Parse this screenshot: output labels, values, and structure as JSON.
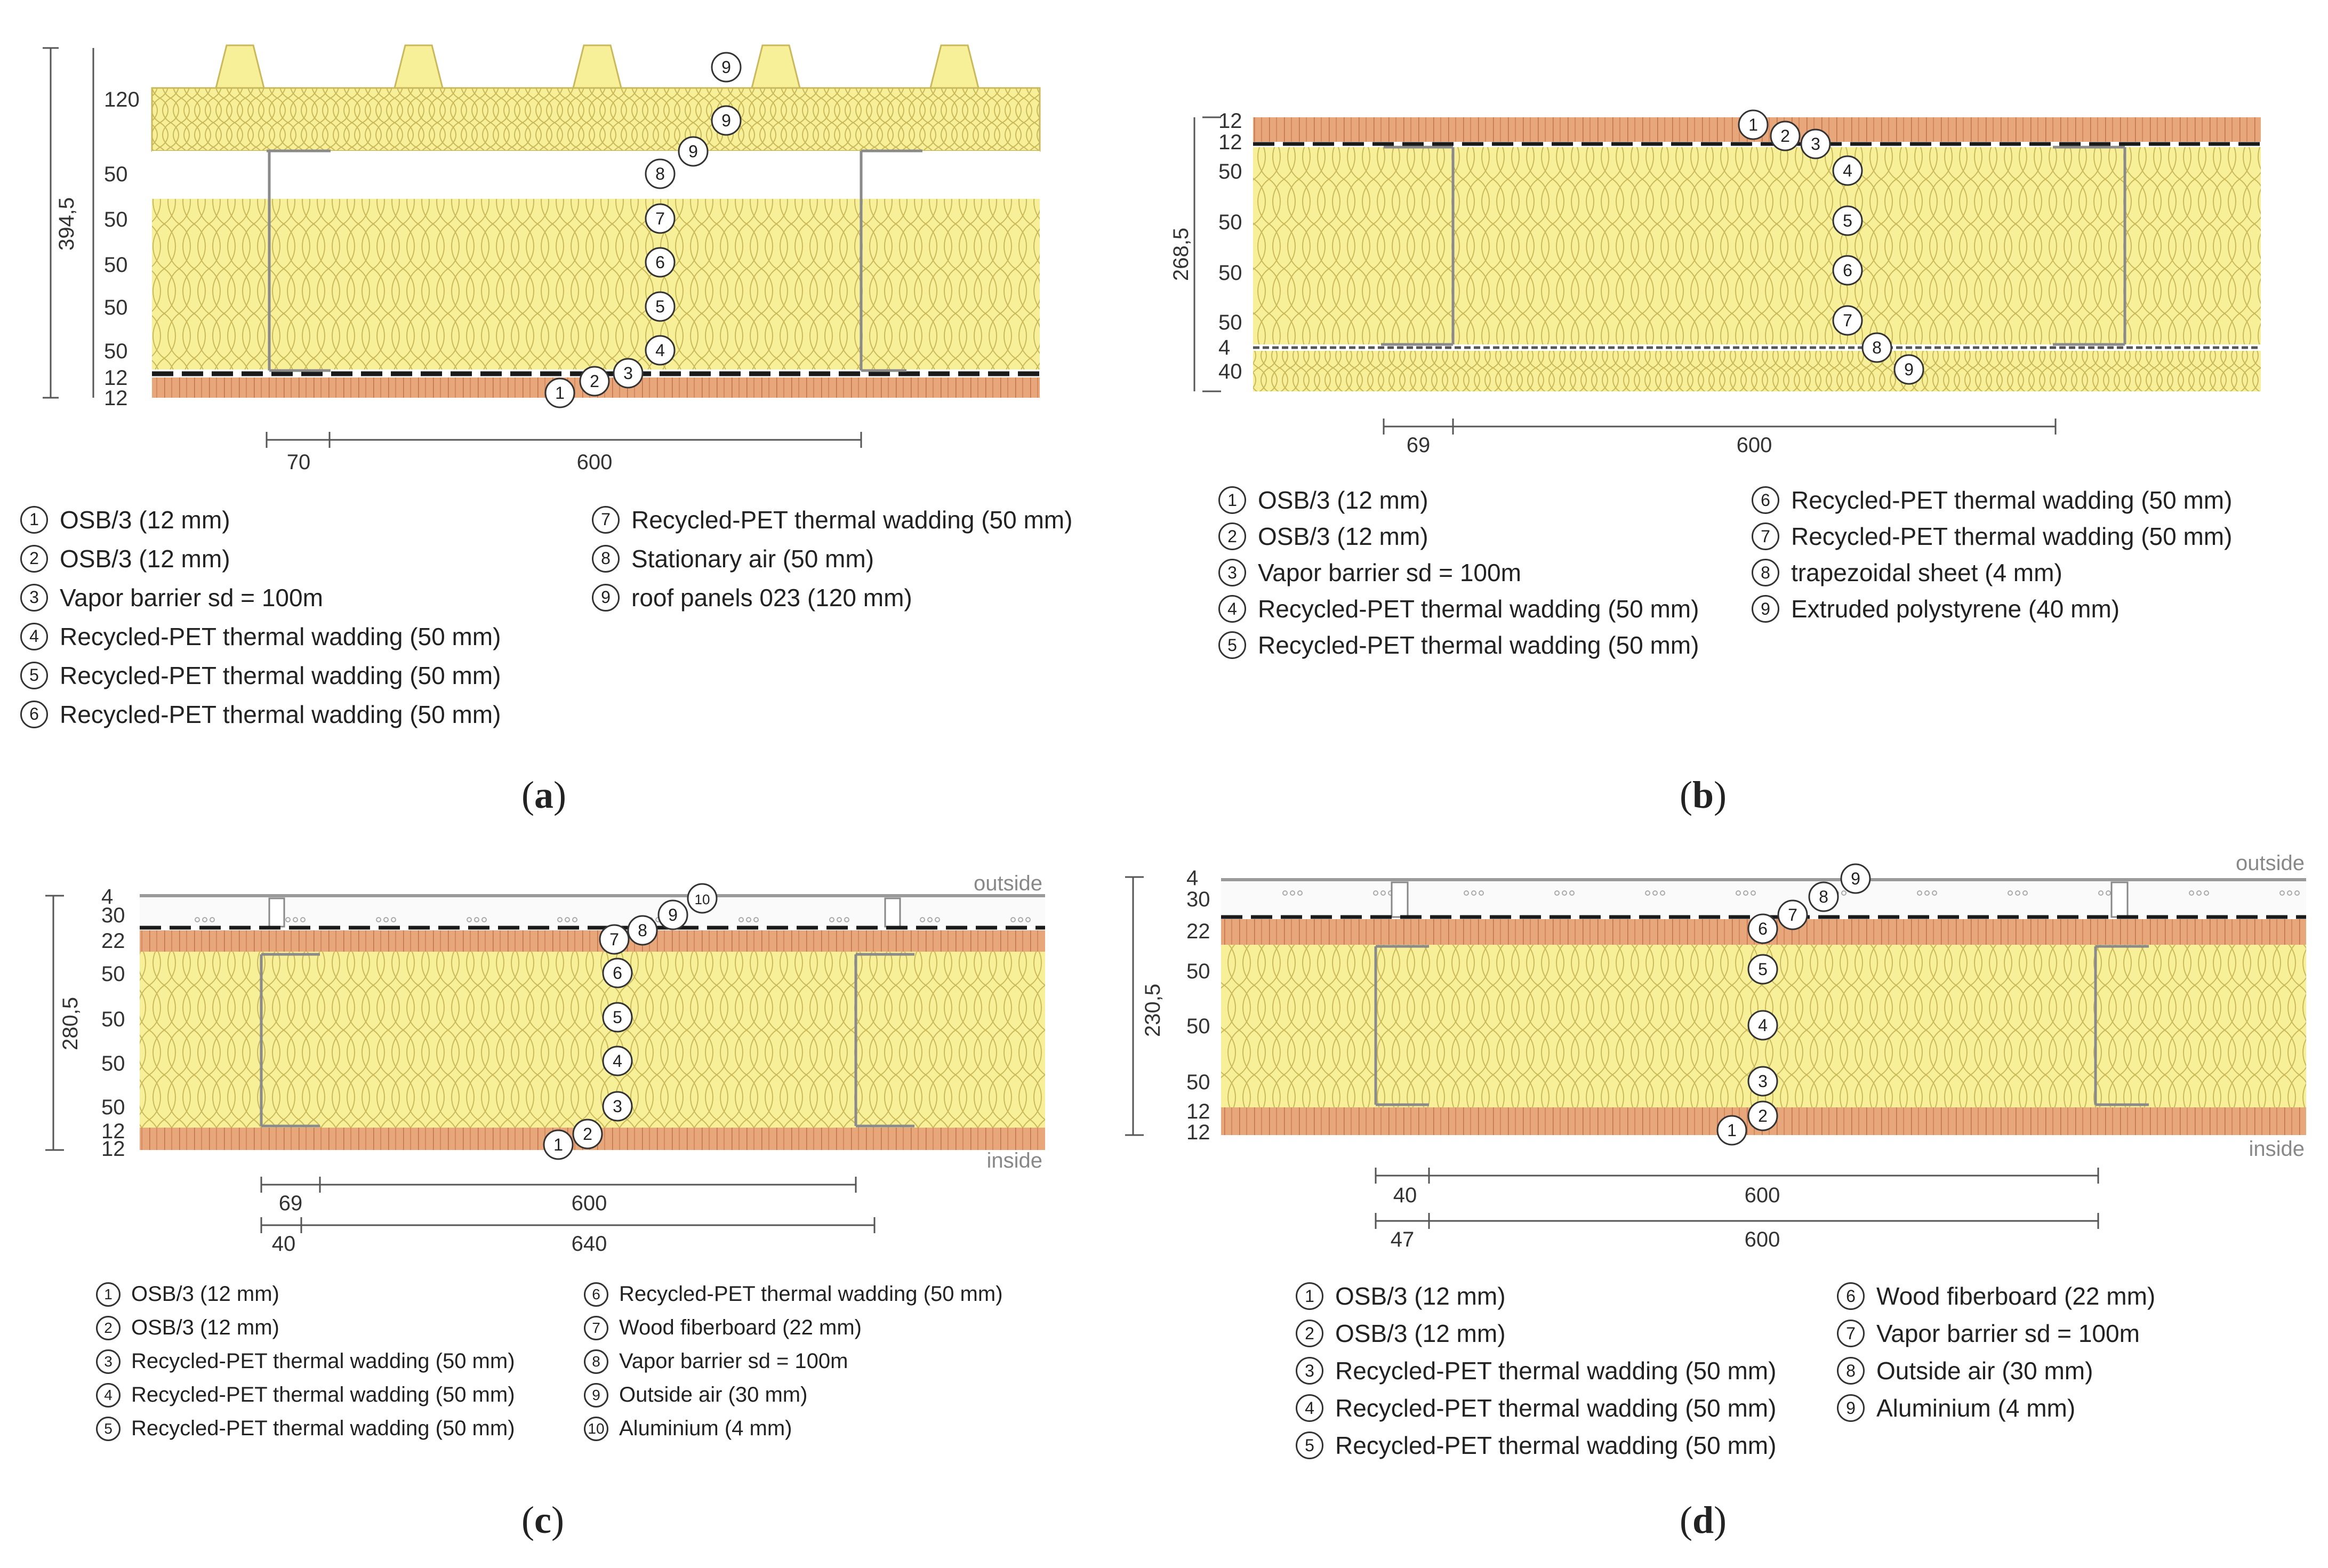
{
  "panels": {
    "a": {
      "caption_letter": "a",
      "thicknesses": [
        "120",
        "50",
        "50",
        "50",
        "50",
        "50",
        "12",
        "12"
      ],
      "total": "394,5",
      "spacing": [
        "70",
        "600"
      ],
      "callouts": [
        "1",
        "2",
        "3",
        "4",
        "5",
        "6",
        "7",
        "8",
        "9",
        "9",
        "9"
      ],
      "legend_col1": [
        {
          "n": "1",
          "text": "OSB/3 (12 mm)"
        },
        {
          "n": "2",
          "text": "OSB/3 (12 mm)"
        },
        {
          "n": "3",
          "text": "Vapor barrier sd = 100m"
        },
        {
          "n": "4",
          "text": "Recycled-PET thermal wadding (50 mm)"
        },
        {
          "n": "5",
          "text": "Recycled-PET thermal wadding (50 mm)"
        },
        {
          "n": "6",
          "text": "Recycled-PET thermal wadding (50 mm)"
        }
      ],
      "legend_col2": [
        {
          "n": "7",
          "text": "Recycled-PET thermal wadding (50 mm)"
        },
        {
          "n": "8",
          "text": "Stationary air (50 mm)"
        },
        {
          "n": "9",
          "text": "roof panels 023 (120 mm)"
        }
      ]
    },
    "b": {
      "caption_letter": "b",
      "thicknesses": [
        "12",
        "12",
        "50",
        "50",
        "50",
        "50",
        "4",
        "40"
      ],
      "total": "268,5",
      "spacing": [
        "69",
        "600"
      ],
      "callouts": [
        "1",
        "2",
        "3",
        "4",
        "5",
        "6",
        "7",
        "8",
        "9"
      ],
      "legend_col1": [
        {
          "n": "1",
          "text": "OSB/3 (12 mm)"
        },
        {
          "n": "2",
          "text": "OSB/3 (12 mm)"
        },
        {
          "n": "3",
          "text": "Vapor barrier sd = 100m"
        },
        {
          "n": "4",
          "text": "Recycled-PET thermal wadding (50 mm)"
        },
        {
          "n": "5",
          "text": "Recycled-PET thermal wadding (50 mm)"
        }
      ],
      "legend_col2": [
        {
          "n": "6",
          "text": "Recycled-PET thermal wadding (50 mm)"
        },
        {
          "n": "7",
          "text": "Recycled-PET thermal wadding (50 mm)"
        },
        {
          "n": "8",
          "text": "trapezoidal sheet (4 mm)"
        },
        {
          "n": "9",
          "text": "Extruded polystyrene (40 mm)"
        }
      ]
    },
    "c": {
      "caption_letter": "c",
      "thicknesses": [
        "4",
        "30",
        "22",
        "50",
        "50",
        "50",
        "50",
        "12",
        "12"
      ],
      "total": "280,5",
      "spacing": [
        "69",
        "600",
        "40",
        "640"
      ],
      "outside": "outside",
      "inside": "inside",
      "callouts": [
        "1",
        "2",
        "3",
        "4",
        "5",
        "6",
        "7",
        "8",
        "9",
        "10"
      ],
      "legend_col1": [
        {
          "n": "1",
          "text": "OSB/3 (12 mm)"
        },
        {
          "n": "2",
          "text": "OSB/3 (12 mm)"
        },
        {
          "n": "3",
          "text": "Recycled-PET thermal wadding (50 mm)"
        },
        {
          "n": "4",
          "text": "Recycled-PET thermal wadding (50 mm)"
        },
        {
          "n": "5",
          "text": "Recycled-PET thermal wadding (50 mm)"
        }
      ],
      "legend_col2": [
        {
          "n": "6",
          "text": "Recycled-PET thermal wadding (50 mm)"
        },
        {
          "n": "7",
          "text": "Wood fiberboard (22 mm)"
        },
        {
          "n": "8",
          "text": "Vapor barrier sd = 100m"
        },
        {
          "n": "9",
          "text": "Outside air (30 mm)"
        },
        {
          "n": "10",
          "text": "Aluminium (4 mm)"
        }
      ]
    },
    "d": {
      "caption_letter": "d",
      "thicknesses": [
        "4",
        "30",
        "22",
        "50",
        "50",
        "50",
        "12",
        "12"
      ],
      "total": "230,5",
      "spacing": [
        "40",
        "600",
        "47",
        "600"
      ],
      "outside": "outside",
      "inside": "inside",
      "callouts": [
        "1",
        "2",
        "3",
        "4",
        "5",
        "6",
        "7",
        "8",
        "9"
      ],
      "legend_col1": [
        {
          "n": "1",
          "text": "OSB/3 (12 mm)"
        },
        {
          "n": "2",
          "text": "OSB/3 (12 mm)"
        },
        {
          "n": "3",
          "text": "Recycled-PET thermal wadding (50 mm)"
        },
        {
          "n": "4",
          "text": "Recycled-PET thermal wadding (50 mm)"
        },
        {
          "n": "5",
          "text": "Recycled-PET thermal wadding (50 mm)"
        }
      ],
      "legend_col2": [
        {
          "n": "6",
          "text": "Wood fiberboard (22 mm)"
        },
        {
          "n": "7",
          "text": "Vapor barrier sd = 100m"
        },
        {
          "n": "8",
          "text": "Outside air (30 mm)"
        },
        {
          "n": "9",
          "text": "Aluminium (4 mm)"
        }
      ]
    }
  },
  "colors": {
    "insulation": "#f7f099",
    "insulation_line": "#c9b95a",
    "osb": "#e8a77a",
    "osb_line": "#c2714a",
    "steel": "#8a8a8a",
    "membrane": "#1a1a1a",
    "air": "#f4f4f4",
    "aluminium": "#cfcfcf"
  }
}
